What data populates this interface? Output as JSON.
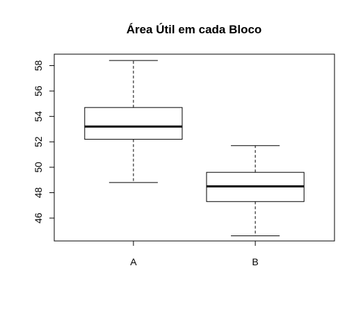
{
  "chart_data": {
    "type": "boxplot",
    "title": "Área Útil em cada Bloco",
    "xlabel": "",
    "ylabel": "",
    "categories": [
      "A",
      "B"
    ],
    "boxes": [
      {
        "category": "A",
        "min": 48.8,
        "q1": 52.2,
        "median": 53.2,
        "q3": 54.7,
        "max": 58.4
      },
      {
        "category": "B",
        "min": 44.6,
        "q1": 47.3,
        "median": 48.5,
        "q3": 49.6,
        "max": 51.7
      }
    ],
    "yticks": [
      46,
      48,
      50,
      52,
      54,
      56,
      58
    ],
    "ylim": [
      44.2,
      58.9
    ],
    "grid": false,
    "colors": {
      "box_fill": "#ffffff",
      "stroke": "#000000"
    }
  }
}
